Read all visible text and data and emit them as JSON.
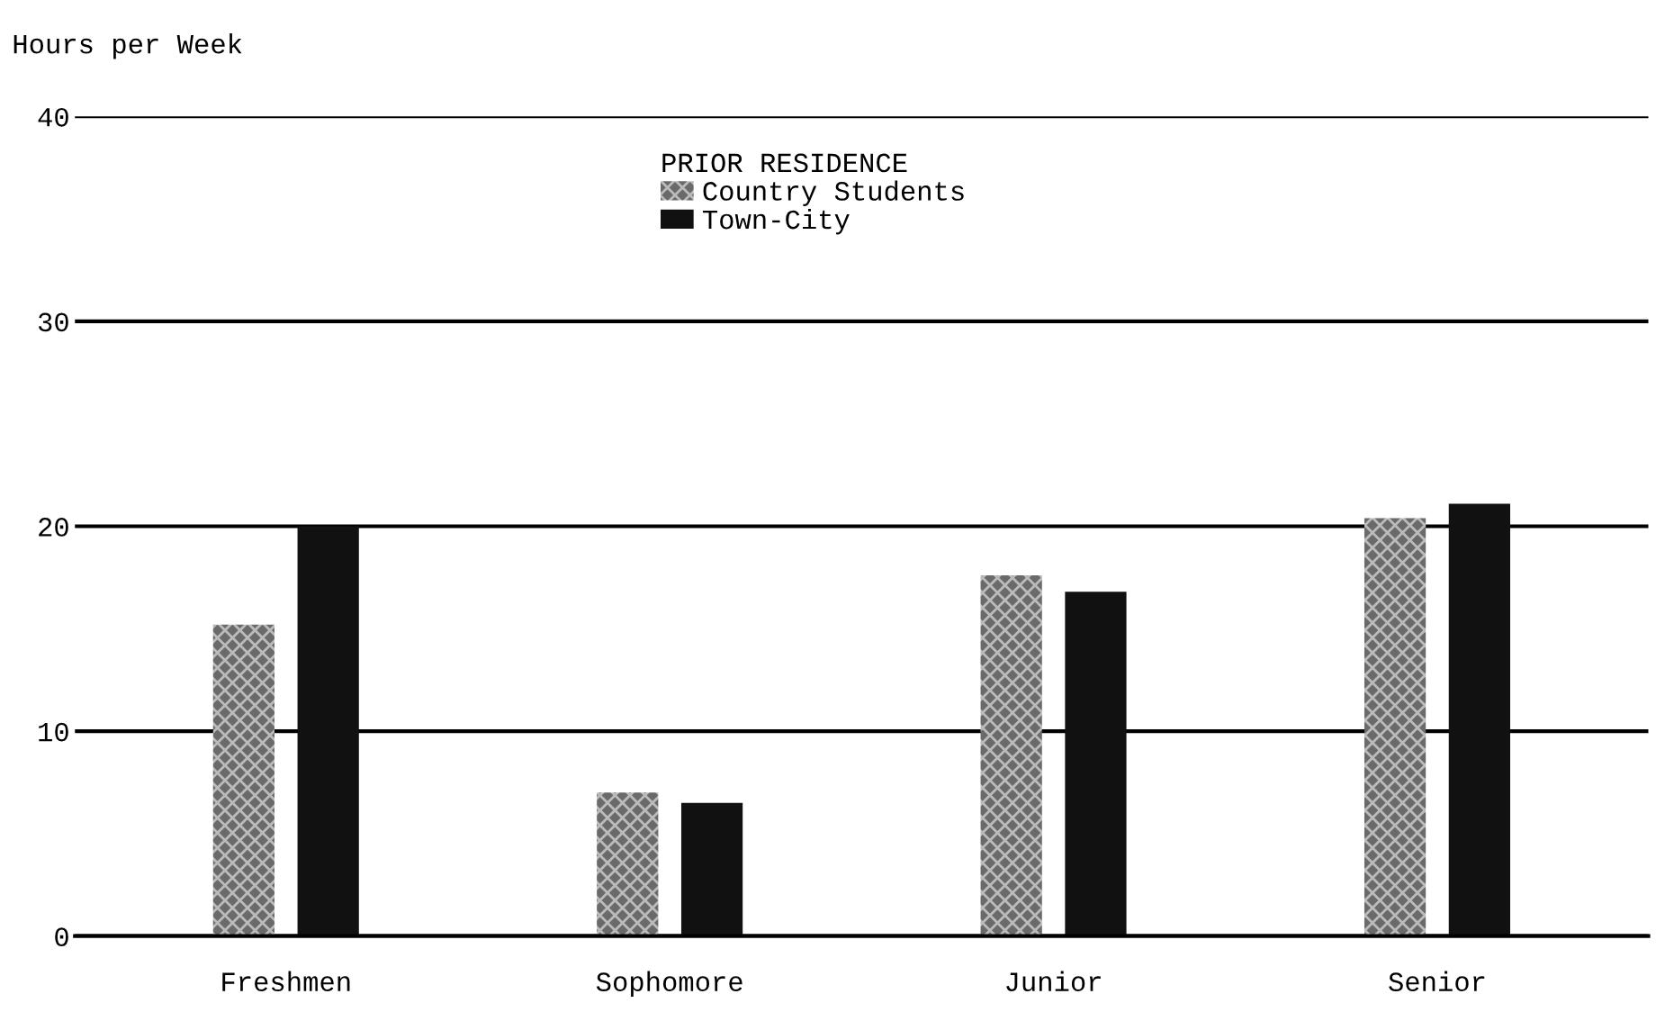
{
  "chart_data": {
    "type": "bar",
    "ylabel": "Hours per Week",
    "legend_title": "PRIOR RESIDENCE",
    "categories": [
      "Freshmen",
      "Sophomore",
      "Junior",
      "Senior"
    ],
    "series": [
      {
        "name": "Country Students",
        "color": "#6a6a6a",
        "values": [
          15.2,
          7.0,
          17.6,
          20.4
        ]
      },
      {
        "name": "Town-City",
        "color": "#111111",
        "values": [
          20.0,
          6.5,
          16.8,
          21.1
        ]
      }
    ],
    "ylim": [
      0,
      40
    ],
    "yticks": [
      0,
      10,
      20,
      30,
      40
    ],
    "grid": "y",
    "legend": "top"
  }
}
